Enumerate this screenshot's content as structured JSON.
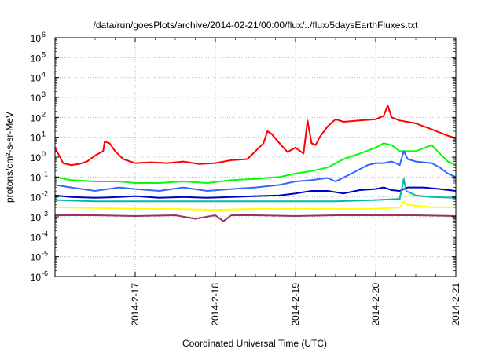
{
  "chart_data": {
    "type": "line",
    "title": "/data/run/goesPlots/archive/2014-02-21/00:00/flux/../flux/5daysEarthFluxes.txt",
    "xlabel": "Coordinated Universal Time (UTC)",
    "ylabel": "protons/cm²-s-sr-MeV",
    "yscale": "log",
    "ylim": [
      1e-06,
      1000000.0
    ],
    "xlim": [
      0,
      5
    ],
    "grid": true,
    "legend": "none",
    "x_ticks": [
      {
        "x": 1,
        "label": "2014-2-17"
      },
      {
        "x": 2,
        "label": "2014-2-18"
      },
      {
        "x": 3,
        "label": "2014-2-19"
      },
      {
        "x": 4,
        "label": "2014-2-20"
      },
      {
        "x": 5,
        "label": "2014-2-21"
      }
    ],
    "y_ticks": [
      {
        "exp": -6,
        "label": "10",
        "sup": "-6"
      },
      {
        "exp": -5,
        "label": "10",
        "sup": "-5"
      },
      {
        "exp": -4,
        "label": "10",
        "sup": "-4"
      },
      {
        "exp": -3,
        "label": "10",
        "sup": "-3"
      },
      {
        "exp": -2,
        "label": "10",
        "sup": "-2"
      },
      {
        "exp": -1,
        "label": "10",
        "sup": "-1"
      },
      {
        "exp": 0,
        "label": "10",
        "sup": "0"
      },
      {
        "exp": 1,
        "label": "10",
        "sup": "1"
      },
      {
        "exp": 2,
        "label": "10",
        "sup": "2"
      },
      {
        "exp": 3,
        "label": "10",
        "sup": "3"
      },
      {
        "exp": 4,
        "label": "10",
        "sup": "4"
      },
      {
        "exp": 5,
        "label": "10",
        "sup": "5"
      },
      {
        "exp": 6,
        "label": "10",
        "sup": "6"
      }
    ],
    "series": [
      {
        "color": "#ff0000",
        "x": [
          0,
          0.1,
          0.2,
          0.3,
          0.4,
          0.5,
          0.6,
          0.62,
          0.68,
          0.75,
          0.85,
          1.0,
          1.2,
          1.4,
          1.6,
          1.8,
          2.0,
          2.2,
          2.4,
          2.5,
          2.6,
          2.65,
          2.7,
          2.8,
          2.9,
          3.0,
          3.1,
          3.15,
          3.2,
          3.25,
          3.3,
          3.4,
          3.5,
          3.6,
          3.8,
          4.0,
          4.1,
          4.15,
          4.2,
          4.3,
          4.5,
          4.7,
          4.9,
          5.0
        ],
        "y": [
          3,
          0.5,
          0.4,
          0.45,
          0.6,
          1.2,
          2,
          6,
          5,
          2,
          0.8,
          0.5,
          0.55,
          0.5,
          0.6,
          0.45,
          0.5,
          0.7,
          0.8,
          2,
          5,
          20,
          15,
          5,
          1.8,
          3,
          1.5,
          70,
          5,
          4,
          10,
          35,
          80,
          60,
          70,
          80,
          120,
          400,
          100,
          70,
          50,
          25,
          12,
          9
        ]
      },
      {
        "color": "#00ff00",
        "x": [
          0,
          0.2,
          0.5,
          0.8,
          1.0,
          1.3,
          1.6,
          1.9,
          2.2,
          2.5,
          2.8,
          3.0,
          3.2,
          3.4,
          3.6,
          3.8,
          4.0,
          4.1,
          4.2,
          4.3,
          4.5,
          4.7,
          4.8,
          4.9,
          5.0
        ],
        "y": [
          0.1,
          0.07,
          0.06,
          0.06,
          0.05,
          0.05,
          0.06,
          0.05,
          0.07,
          0.08,
          0.1,
          0.15,
          0.2,
          0.3,
          0.8,
          1.5,
          3,
          5,
          4,
          2,
          2,
          4,
          1.5,
          0.6,
          0.4
        ]
      },
      {
        "color": "#3366ff",
        "x": [
          0,
          0.2,
          0.5,
          0.8,
          1.0,
          1.3,
          1.6,
          1.9,
          2.2,
          2.5,
          2.8,
          3.0,
          3.2,
          3.4,
          3.5,
          3.7,
          3.9,
          4.0,
          4.1,
          4.2,
          4.3,
          4.35,
          4.4,
          4.5,
          4.7,
          4.8,
          4.9,
          5.0
        ],
        "y": [
          0.04,
          0.03,
          0.02,
          0.03,
          0.025,
          0.02,
          0.03,
          0.02,
          0.025,
          0.03,
          0.04,
          0.06,
          0.07,
          0.09,
          0.06,
          0.15,
          0.4,
          0.5,
          0.5,
          0.6,
          0.4,
          2,
          0.8,
          0.6,
          0.5,
          0.3,
          0.15,
          0.1
        ]
      },
      {
        "color": "#0000cc",
        "x": [
          0,
          0.2,
          0.5,
          0.8,
          1.0,
          1.3,
          1.6,
          1.9,
          2.2,
          2.5,
          2.8,
          3.0,
          3.2,
          3.4,
          3.6,
          3.8,
          4.0,
          4.1,
          4.2,
          4.3,
          4.4,
          4.6,
          4.8,
          5.0
        ],
        "y": [
          0.012,
          0.01,
          0.009,
          0.01,
          0.011,
          0.009,
          0.01,
          0.009,
          0.01,
          0.011,
          0.012,
          0.015,
          0.02,
          0.02,
          0.015,
          0.022,
          0.025,
          0.03,
          0.022,
          0.02,
          0.03,
          0.03,
          0.025,
          0.02
        ]
      },
      {
        "color": "#00bbaa",
        "x": [
          0,
          0.5,
          1.0,
          1.5,
          2.0,
          2.5,
          3.0,
          3.5,
          4.0,
          4.3,
          4.35,
          4.38,
          4.5,
          4.7,
          5.0
        ],
        "y": [
          0.007,
          0.006,
          0.006,
          0.006,
          0.006,
          0.006,
          0.006,
          0.006,
          0.007,
          0.008,
          0.08,
          0.02,
          0.012,
          0.01,
          0.009
        ]
      },
      {
        "color": "#ffff00",
        "x": [
          0,
          0.5,
          1.0,
          1.5,
          2.0,
          2.5,
          3.0,
          3.5,
          4.0,
          4.3,
          4.35,
          4.4,
          4.7,
          5.0
        ],
        "y": [
          0.003,
          0.0028,
          0.0025,
          0.0025,
          0.0022,
          0.0025,
          0.0025,
          0.0025,
          0.0025,
          0.003,
          0.006,
          0.004,
          0.003,
          0.003
        ]
      },
      {
        "color": "#993366",
        "x": [
          0,
          0.5,
          1.0,
          1.5,
          1.75,
          2.0,
          2.1,
          2.2,
          2.5,
          3.0,
          3.5,
          4.0,
          4.5,
          5.0
        ],
        "y": [
          0.0012,
          0.0012,
          0.0011,
          0.0012,
          0.0008,
          0.0012,
          0.0006,
          0.0012,
          0.0012,
          0.0011,
          0.0012,
          0.0012,
          0.0012,
          0.0011
        ]
      }
    ]
  }
}
